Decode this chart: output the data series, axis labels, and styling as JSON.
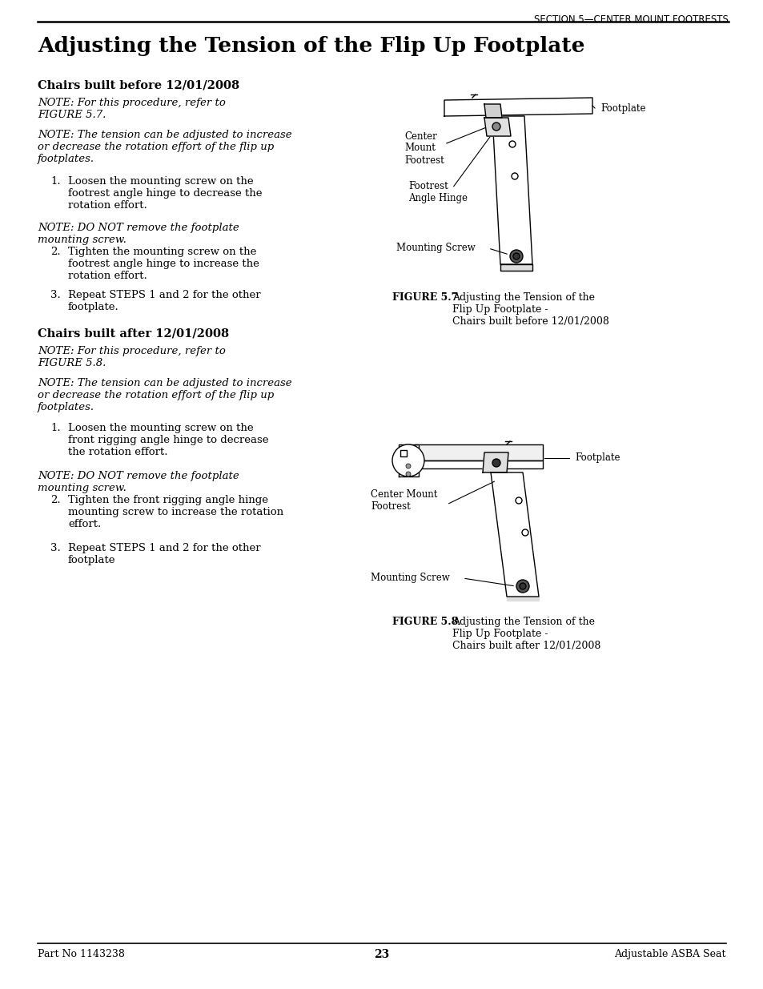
{
  "page_title": "Adjusting the Tension of the Flip Up Footplate",
  "header_text": "SECTION 5—CENTER MOUNT FOOTRESTS",
  "section1_heading": "Chairs built before 12/01/2008",
  "section1_note1": "NOTE: For this procedure, refer to\nFIGURE 5.7.",
  "section1_note2": "NOTE: The tension can be adjusted to increase\nor decrease the rotation effort of the flip up\nfootplates.",
  "section1_step1": "Loosen the mounting screw on the\nfootrest angle hinge to decrease the\nrotation effort.",
  "section1_note3": "NOTE: DO NOT remove the footplate\nmounting screw.",
  "section1_step2": "Tighten the mounting screw on the\nfootrest angle hinge to increase the\nrotation effort.",
  "section1_step3": "Repeat STEPS 1 and 2 for the other\nfootplate.",
  "figure1_label": "FIGURE 5.7",
  "figure1_caption": "Adjusting the Tension of the\nFlip Up Footplate -\nChairs built before 12/01/2008",
  "section2_heading": "Chairs built after 12/01/2008",
  "section2_note1": "NOTE: For this procedure, refer to\nFIGURE 5.8.",
  "section2_note2": "NOTE: The tension can be adjusted to increase\nor decrease the rotation effort of the flip up\nfootplates.",
  "section2_step1": "Loosen the mounting screw on the\nfront rigging angle hinge to decrease\nthe rotation effort.",
  "section2_note3": "NOTE: DO NOT remove the footplate\nmounting screw.",
  "section2_step2": "Tighten the front rigging angle hinge\nmounting screw to increase the rotation\neffort.",
  "section2_step3": "Repeat STEPS 1 and 2 for the other\nfootplate",
  "figure2_label": "FIGURE 5.8",
  "figure2_caption": "Adjusting the Tension of the\nFlip Up Footplate -\nChairs built after 12/01/2008",
  "footer_left": "Part No 1143238",
  "footer_center": "23",
  "footer_right": "Adjustable ASBA Seat",
  "bg_color": "#ffffff",
  "text_color": "#000000",
  "lw": 1.0,
  "diagram_color": "#ffffff",
  "diagram_line_color": "#000000"
}
